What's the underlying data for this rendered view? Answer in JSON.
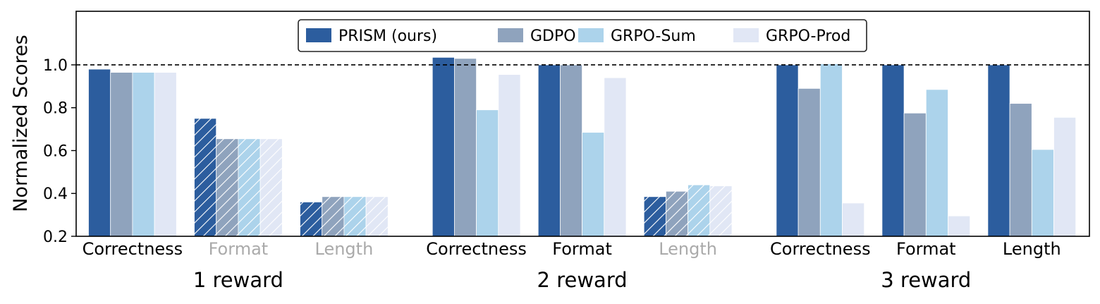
{
  "chart_data": {
    "type": "bar",
    "ylabel": "Normalized Scores",
    "ylim": [
      0.2,
      1.25
    ],
    "yticks": [
      "0.2",
      "0.4",
      "0.6",
      "0.8",
      "1.0"
    ],
    "reference_line": 1.0,
    "legend": {
      "placement": "top-center"
    },
    "series": [
      {
        "name": "PRISM (ours)",
        "color": "#2c5d9e"
      },
      {
        "name": "GDPO",
        "color": "#8fa3bd"
      },
      {
        "name": "GRPO-Sum",
        "color": "#acd3eb"
      },
      {
        "name": "GRPO-Prod",
        "color": "#e1e7f5"
      }
    ],
    "groups": [
      {
        "label": "1 reward",
        "categories": [
          {
            "label": "Correctness",
            "active": true,
            "values": [
              0.98,
              0.965,
              0.965,
              0.965
            ]
          },
          {
            "label": "Format",
            "active": false,
            "values": [
              0.75,
              0.655,
              0.655,
              0.655
            ]
          },
          {
            "label": "Length",
            "active": false,
            "values": [
              0.36,
              0.385,
              0.385,
              0.385
            ]
          }
        ]
      },
      {
        "label": "2 reward",
        "categories": [
          {
            "label": "Correctness",
            "active": true,
            "values": [
              1.035,
              1.03,
              0.79,
              0.955
            ]
          },
          {
            "label": "Format",
            "active": true,
            "values": [
              1.0,
              1.0,
              0.685,
              0.94
            ]
          },
          {
            "label": "Length",
            "active": false,
            "values": [
              0.385,
              0.41,
              0.44,
              0.435
            ]
          }
        ]
      },
      {
        "label": "3 reward",
        "categories": [
          {
            "label": "Correctness",
            "active": true,
            "values": [
              1.0,
              0.89,
              1.005,
              0.355
            ]
          },
          {
            "label": "Format",
            "active": true,
            "values": [
              1.0,
              0.775,
              0.885,
              0.295
            ]
          },
          {
            "label": "Length",
            "active": true,
            "values": [
              1.0,
              0.82,
              0.605,
              0.755
            ]
          }
        ]
      }
    ],
    "colors": {
      "active_label": "#000000",
      "inactive_label": "#aaaaaa",
      "hatch": "#ffffff"
    }
  }
}
